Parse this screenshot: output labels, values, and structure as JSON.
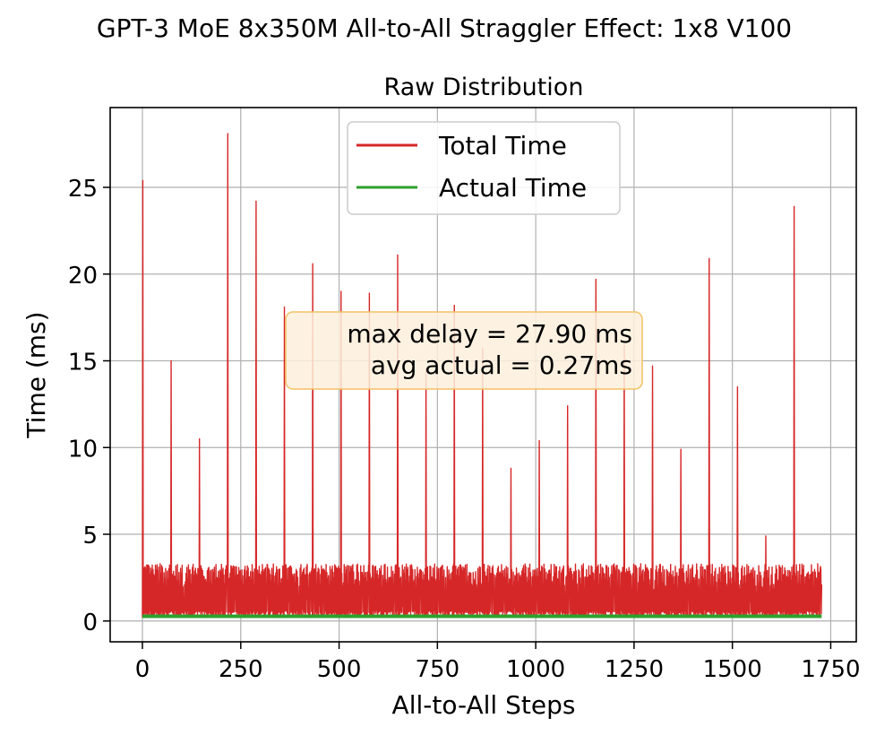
{
  "chart_data": {
    "type": "line",
    "suptitle": "GPT-3 MoE 8x350M All-to-All Straggler Effect: 1x8 V100",
    "title": "Raw Distribution",
    "xlabel": "All-to-All Steps",
    "ylabel": "Time (ms)",
    "xlim": [
      -82,
      1815
    ],
    "ylim": [
      -1.2,
      29.6
    ],
    "xticks": [
      0,
      250,
      500,
      750,
      1000,
      1250,
      1500,
      1750
    ],
    "xtick_labels": [
      "0",
      "250",
      "500",
      "750",
      "1000",
      "1250",
      "1500",
      "1750"
    ],
    "yticks": [
      0,
      5,
      10,
      15,
      20,
      25
    ],
    "ytick_labels": [
      "0",
      "5",
      "10",
      "15",
      "20",
      "25"
    ],
    "grid": true,
    "legend_position": "top-center",
    "n_steps": 1728,
    "series": [
      {
        "name": "Total Time",
        "color": "#d62728",
        "baseline_low": 0.2,
        "baseline_high": 3.3,
        "spikes": [
          {
            "x": 1,
            "y": 25.4
          },
          {
            "x": 73,
            "y": 15.0
          },
          {
            "x": 145,
            "y": 10.5
          },
          {
            "x": 217,
            "y": 28.1
          },
          {
            "x": 289,
            "y": 24.2
          },
          {
            "x": 361,
            "y": 18.1
          },
          {
            "x": 433,
            "y": 20.6
          },
          {
            "x": 505,
            "y": 19.0
          },
          {
            "x": 577,
            "y": 18.9
          },
          {
            "x": 649,
            "y": 21.1
          },
          {
            "x": 721,
            "y": 14.5
          },
          {
            "x": 793,
            "y": 18.2
          },
          {
            "x": 865,
            "y": 15.7
          },
          {
            "x": 937,
            "y": 8.8
          },
          {
            "x": 1009,
            "y": 10.4
          },
          {
            "x": 1081,
            "y": 12.4
          },
          {
            "x": 1153,
            "y": 19.7
          },
          {
            "x": 1225,
            "y": 15.9
          },
          {
            "x": 1297,
            "y": 14.7
          },
          {
            "x": 1369,
            "y": 9.9
          },
          {
            "x": 1441,
            "y": 20.9
          },
          {
            "x": 1513,
            "y": 13.5
          },
          {
            "x": 1585,
            "y": 4.9
          },
          {
            "x": 1657,
            "y": 23.9
          }
        ]
      },
      {
        "name": "Actual Time",
        "color": "#2ca02c",
        "value": 0.27
      }
    ],
    "annotation": {
      "line1": "max delay =  27.90 ms",
      "line2": "avg actual =  0.27ms"
    }
  }
}
